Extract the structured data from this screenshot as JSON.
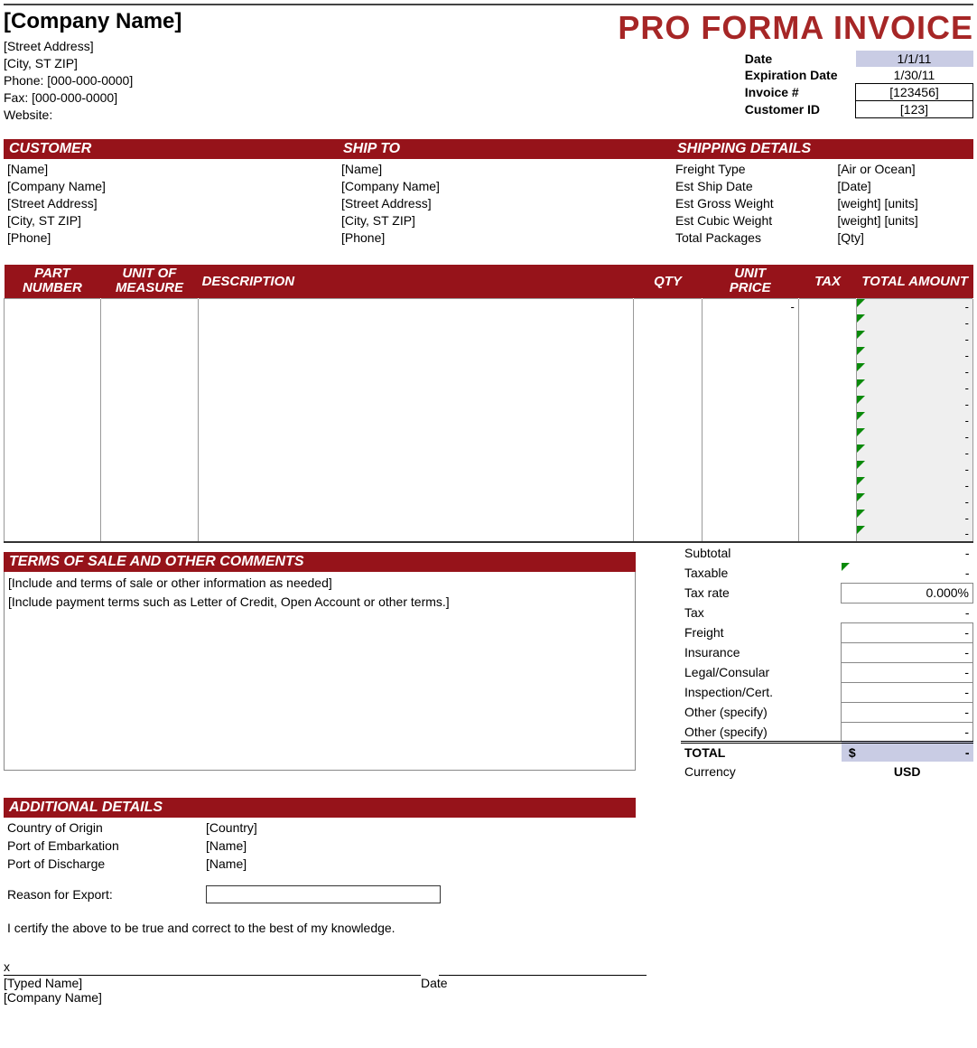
{
  "colors": {
    "section_header_bg": "#96131a",
    "section_header_fg": "#ffffff",
    "title_color": "#a62626",
    "meta_shade": "#c9cce4",
    "total_cell_bg": "#efefef",
    "triangle": "#0a8a0a",
    "border": "#888888"
  },
  "company": {
    "name": "[Company Name]",
    "street": "[Street Address]",
    "citystzip": "[City, ST  ZIP]",
    "phone": "Phone: [000-000-0000]",
    "fax": "Fax: [000-000-0000]",
    "website": "Website:"
  },
  "title": "PRO FORMA INVOICE",
  "meta": {
    "date_label": "Date",
    "date_value": "1/1/11",
    "exp_label": "Expiration Date",
    "exp_value": "1/30/11",
    "inv_label": "Invoice #",
    "inv_value": "[123456]",
    "cust_label": "Customer ID",
    "cust_value": "[123]"
  },
  "customer": {
    "header": "CUSTOMER",
    "name": "[Name]",
    "company": "[Company Name]",
    "street": "[Street Address]",
    "citystzip": "[City, ST  ZIP]",
    "phone": "[Phone]"
  },
  "shipto": {
    "header": "SHIP TO",
    "name": "[Name]",
    "company": "[Company Name]",
    "street": "[Street Address]",
    "citystzip": "[City, ST  ZIP]",
    "phone": "[Phone]"
  },
  "shipping": {
    "header": "SHIPPING DETAILS",
    "rows": [
      {
        "l": "Freight Type",
        "r": "[Air or Ocean]"
      },
      {
        "l": "Est Ship Date",
        "r": "[Date]"
      },
      {
        "l": "Est Gross Weight",
        "r": "[weight] [units]"
      },
      {
        "l": "Est Cubic Weight",
        "r": "[weight] [units]"
      },
      {
        "l": "Total Packages",
        "r": "[Qty]"
      }
    ]
  },
  "items": {
    "headers": {
      "part": "PART NUMBER",
      "uom": "UNIT OF MEASURE",
      "desc": "DESCRIPTION",
      "qty": "QTY",
      "price": "UNIT PRICE",
      "tax": "TAX",
      "total": "TOTAL AMOUNT"
    },
    "col_widths_pct": [
      10,
      10,
      45,
      7,
      10,
      6,
      12
    ],
    "row_count": 15,
    "first_row_price_dash": "-",
    "total_dash": "-"
  },
  "terms": {
    "header": "TERMS OF SALE AND OTHER COMMENTS",
    "line1": "[Include and terms of sale or other information as needed]",
    "line2": "[Include payment terms such as Letter of Credit, Open Account or other terms.]"
  },
  "totals": {
    "subtotal_lbl": "Subtotal",
    "subtotal_val": "-",
    "taxable_lbl": "Taxable",
    "taxable_val": "-",
    "taxrate_lbl": "Tax rate",
    "taxrate_val": "0.000%",
    "tax_lbl": "Tax",
    "tax_val": "-",
    "freight_lbl": "Freight",
    "freight_val": "-",
    "ins_lbl": "Insurance",
    "ins_val": "-",
    "legal_lbl": "Legal/Consular",
    "legal_val": "-",
    "insp_lbl": "Inspection/Cert.",
    "insp_val": "-",
    "other1_lbl": "Other (specify)",
    "other1_val": "-",
    "other2_lbl": "Other (specify)",
    "other2_val": "-",
    "total_lbl": "TOTAL",
    "total_sym": "$",
    "total_val": "-",
    "curr_lbl": "Currency",
    "curr_val": "USD"
  },
  "addl": {
    "header": "ADDITIONAL DETAILS",
    "origin_lbl": "Country of Origin",
    "origin_val": "[Country]",
    "embark_lbl": "Port of Embarkation",
    "embark_val": "[Name]",
    "disch_lbl": "Port of Discharge",
    "disch_val": "[Name]",
    "reason_lbl": "Reason for Export:",
    "cert": "I certify the above to be true and correct to the best of my knowledge."
  },
  "sig": {
    "x": "x",
    "typed": "[Typed Name]",
    "company": "[Company Name]",
    "date_lbl": "Date"
  }
}
